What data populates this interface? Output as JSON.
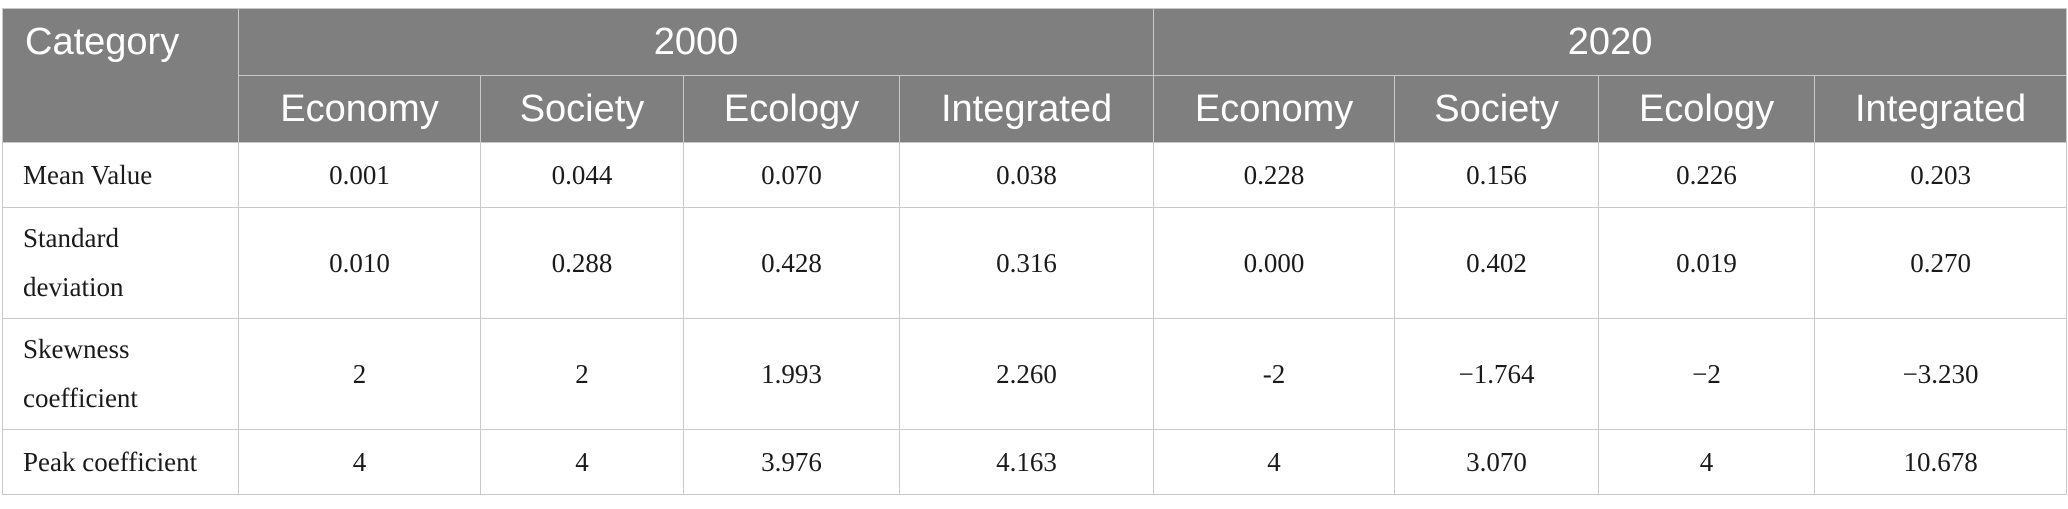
{
  "table": {
    "corner_header": "Category",
    "year_headers": [
      "2000",
      "2020"
    ],
    "sub_headers": [
      "Economy",
      "Society",
      "Ecology",
      "Integrated",
      "Economy",
      "Society",
      "Ecology",
      "Integrated"
    ],
    "rows": [
      {
        "label_lines": [
          "Mean Value"
        ],
        "values": [
          "0.001",
          "0.044",
          "0.070",
          "0.038",
          "0.228",
          "0.156",
          "0.226",
          "0.203"
        ]
      },
      {
        "label_lines": [
          "Standard",
          "deviation"
        ],
        "values": [
          "0.010",
          "0.288",
          "0.428",
          "0.316",
          "0.000",
          "0.402",
          "0.019",
          "0.270"
        ]
      },
      {
        "label_lines": [
          "Skewness",
          "coefficient"
        ],
        "values": [
          "2",
          "2",
          "1.993",
          "2.260",
          "-2",
          "−1.764",
          "−2",
          "−3.230"
        ]
      },
      {
        "label_lines": [
          "Peak coefficient"
        ],
        "values": [
          "4",
          "4",
          "3.976",
          "4.163",
          "4",
          "3.070",
          "4",
          "10.678"
        ]
      }
    ]
  }
}
